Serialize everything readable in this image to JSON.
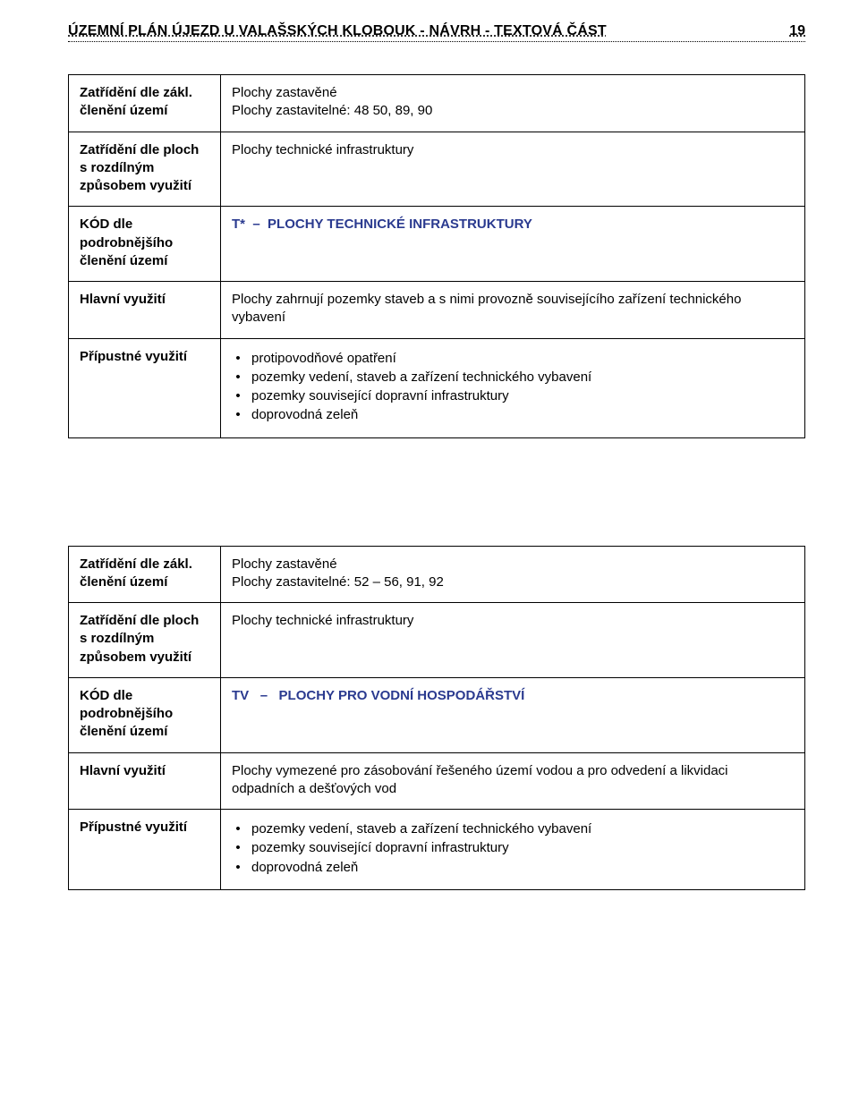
{
  "header": {
    "title": "ÚZEMNÍ PLÁN ÚJEZD U VALAŠSKÝCH KLOBOUK - NÁVRH - TEXTOVÁ ČÁST",
    "page_number": "19"
  },
  "colors": {
    "blue_accent": "#2a3a8f",
    "text": "#000000",
    "background": "#ffffff"
  },
  "blocks": [
    {
      "rows": {
        "zatrideni_zakl": {
          "label_line1": "Zatřídění dle zákl.",
          "label_line2": "členění území",
          "value_line1": "Plochy zastavěné",
          "value_line2": "Plochy zastavitelné:  48 50, 89, 90"
        },
        "zatrideni_ploch": {
          "label_line1": "Zatřídění dle ploch",
          "label_line2": "s rozdílným",
          "label_line3": "způsobem využití",
          "value": "Plochy technické infrastruktury"
        },
        "kod": {
          "label_line1": "KÓD dle",
          "label_line2": "podrobnějšího",
          "label_line3": "členění území",
          "code": "T*",
          "code_sep": "–",
          "code_text": "PLOCHY TECHNICKÉ INFRASTRUKTURY"
        },
        "hlavni": {
          "label": "Hlavní využití",
          "value": "Plochy zahrnují pozemky staveb a s nimi provozně souvisejícího zařízení technického vybavení"
        },
        "pripustne": {
          "label": "Přípustné využití",
          "items": [
            "protipovodňové opatření",
            "pozemky vedení, staveb a zařízení technického vybavení",
            "pozemky související dopravní infrastruktury",
            "doprovodná zeleň"
          ]
        }
      }
    },
    {
      "rows": {
        "zatrideni_zakl": {
          "label_line1": "Zatřídění dle zákl.",
          "label_line2": "členění území",
          "value_line1": "Plochy zastavěné",
          "value_line2": "Plochy zastavitelné:  52 – 56, 91, 92"
        },
        "zatrideni_ploch": {
          "label_line1": "Zatřídění dle ploch",
          "label_line2": "s rozdílným",
          "label_line3": "způsobem využití",
          "value": "Plochy technické infrastruktury"
        },
        "kod": {
          "label_line1": "KÓD dle",
          "label_line2": "podrobnějšího",
          "label_line3": "členění území",
          "code": "TV",
          "code_sep": "–",
          "code_text": "PLOCHY PRO VODNÍ HOSPODÁŘSTVÍ"
        },
        "hlavni": {
          "label": "Hlavní využití",
          "value": "Plochy vymezené pro zásobování řešeného území vodou a pro odvedení a likvidaci odpadních a dešťových vod"
        },
        "pripustne": {
          "label": "Přípustné využití",
          "items": [
            "pozemky vedení, staveb a zařízení technického vybavení",
            "pozemky související dopravní infrastruktury",
            "doprovodná zeleň"
          ]
        }
      }
    }
  ]
}
